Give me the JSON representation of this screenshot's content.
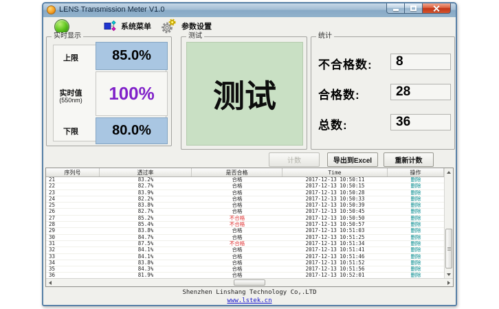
{
  "window": {
    "title": "LENS Transmission Meter V1.0"
  },
  "toolbar": {
    "system_menu": "系统菜单",
    "settings": "参数设置"
  },
  "realtime": {
    "group_label": "实时显示",
    "upper_label": "上限",
    "upper_value": "85.0%",
    "current_label": "实时值",
    "current_sub": "(550nm)",
    "current_value": "100%",
    "lower_label": "下限",
    "lower_value": "80.0%"
  },
  "test": {
    "group_label": "测试",
    "display_text": "测试"
  },
  "stats": {
    "group_label": "统计",
    "items": [
      {
        "label": "不合格数:",
        "value": "8"
      },
      {
        "label": "合格数:",
        "value": "28"
      },
      {
        "label": "总数:",
        "value": "36"
      }
    ]
  },
  "buttons": {
    "count": "计数",
    "export": "导出到Excel",
    "recount": "重新计数"
  },
  "table": {
    "headers": [
      "序列号",
      "透过率",
      "是否合格",
      "Time",
      "操作"
    ],
    "pass_text": "合格",
    "fail_text": "不合格",
    "delete_label": "删除",
    "rows": [
      {
        "no": "21",
        "rate": "83.2%",
        "result": "合格",
        "time": "2017-12-13 10:50:11"
      },
      {
        "no": "22",
        "rate": "82.7%",
        "result": "合格",
        "time": "2017-12-13 10:50:15"
      },
      {
        "no": "23",
        "rate": "83.9%",
        "result": "合格",
        "time": "2017-12-13 10:50:28"
      },
      {
        "no": "24",
        "rate": "82.2%",
        "result": "合格",
        "time": "2017-12-13 10:50:33"
      },
      {
        "no": "25",
        "rate": "83.8%",
        "result": "合格",
        "time": "2017-12-13 10:50:39"
      },
      {
        "no": "26",
        "rate": "82.7%",
        "result": "合格",
        "time": "2017-12-13 10:50:45"
      },
      {
        "no": "27",
        "rate": "85.2%",
        "result": "不合格",
        "time": "2017-12-13 10:50:50"
      },
      {
        "no": "28",
        "rate": "85.4%",
        "result": "不合格",
        "time": "2017-12-13 10:50:57"
      },
      {
        "no": "29",
        "rate": "83.8%",
        "result": "合格",
        "time": "2017-12-13 10:51:03"
      },
      {
        "no": "30",
        "rate": "84.7%",
        "result": "合格",
        "time": "2017-12-13 10:51:25"
      },
      {
        "no": "31",
        "rate": "87.5%",
        "result": "不合格",
        "time": "2017-12-13 10:51:34"
      },
      {
        "no": "32",
        "rate": "84.1%",
        "result": "合格",
        "time": "2017-12-13 10:51:41"
      },
      {
        "no": "33",
        "rate": "84.1%",
        "result": "合格",
        "time": "2017-12-13 10:51:46"
      },
      {
        "no": "34",
        "rate": "83.8%",
        "result": "合格",
        "time": "2017-12-13 10:51:52"
      },
      {
        "no": "35",
        "rate": "84.3%",
        "result": "合格",
        "time": "2017-12-13 10:51:56"
      },
      {
        "no": "36",
        "rate": "81.9%",
        "result": "合格",
        "time": "2017-12-13 10:52:01"
      }
    ]
  },
  "footer": {
    "company": "Shenzhen Linshang Technology Co,.LTD",
    "link": "www.lstek.cn"
  },
  "colors": {
    "status_green": "#63c721",
    "limit_blue_bg": "#a9c6e2",
    "value_purple": "#8021c9",
    "test_green_bg": "#c9e0c4",
    "fail_red": "#e03030",
    "delete_teal": "#00898c",
    "titlebar_blue": "#8fafca",
    "link_blue": "#1111cc"
  }
}
